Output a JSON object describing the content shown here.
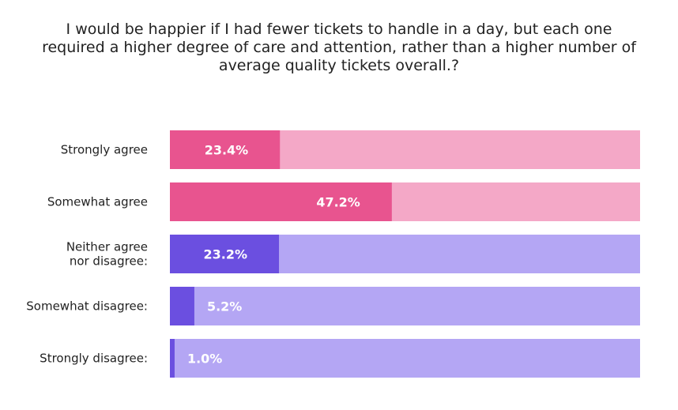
{
  "chart_data": {
    "type": "bar",
    "orientation": "horizontal",
    "stacked_to_100": true,
    "title_lines": [
      "I would be happier if I had fewer tickets to handle in a day, but each one",
      "required a higher degree of care and attention, rather than a higher number of",
      "average quality tickets overall.?"
    ],
    "categories": [
      [
        "Strongly agree"
      ],
      [
        "Somewhat agree"
      ],
      [
        "Neither agree",
        "nor disagree:"
      ],
      [
        "Somewhat disagree:"
      ],
      [
        "Strongly disagree:"
      ]
    ],
    "values": [
      23.4,
      47.2,
      23.2,
      5.2,
      1.0
    ],
    "value_labels": [
      "23.4%",
      "47.2%",
      "23.2%",
      "5.2%",
      "1.0%"
    ],
    "xlim": [
      0,
      100
    ],
    "groups": [
      "agree",
      "agree",
      "disagree",
      "disagree",
      "disagree"
    ],
    "colors": {
      "agree": {
        "fill": "#e8548f",
        "track": "#f4a8c7"
      },
      "disagree": {
        "fill": "#6b4fe0",
        "track": "#b4a6f4"
      }
    }
  }
}
